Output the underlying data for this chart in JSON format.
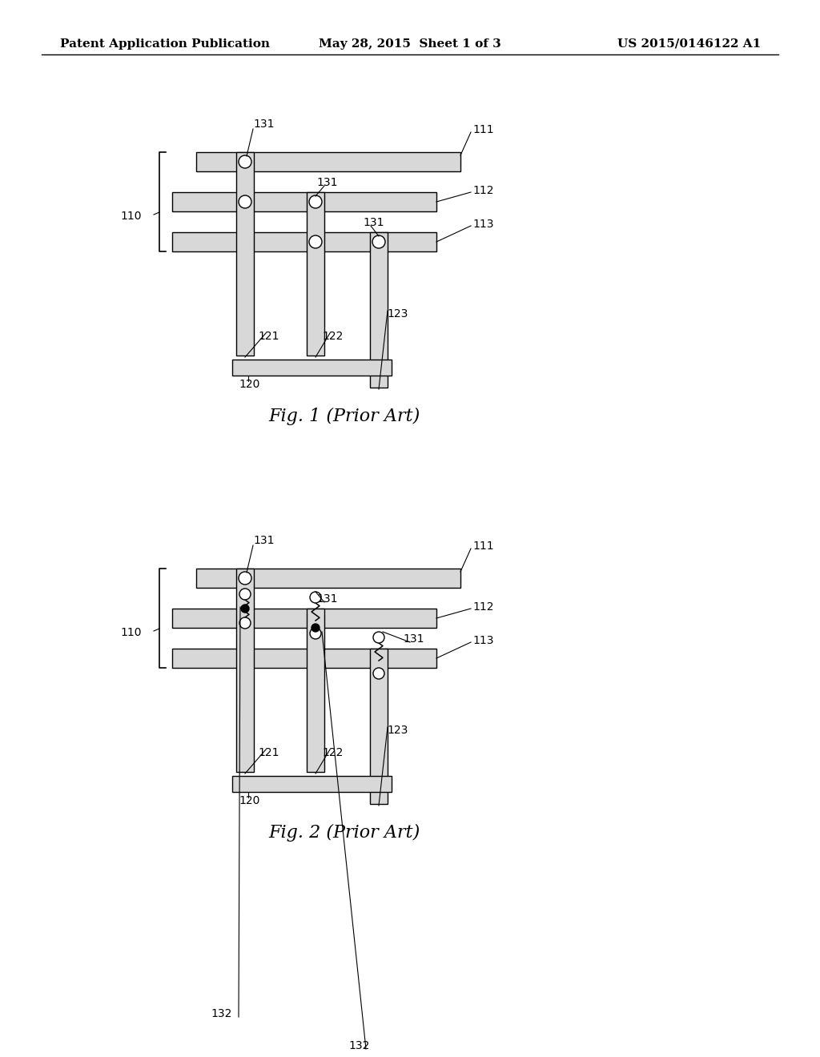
{
  "title_left": "Patent Application Publication",
  "title_center": "May 28, 2015  Sheet 1 of 3",
  "title_right": "US 2015/0146122 A1",
  "fig1_caption": "Fig. 1 (Prior Art)",
  "fig2_caption": "Fig. 2 (Prior Art)",
  "bg_color": "#ffffff",
  "bar_fill": "#d8d8d8",
  "col_fill": "#d8d8d8",
  "line_color": "#000000"
}
